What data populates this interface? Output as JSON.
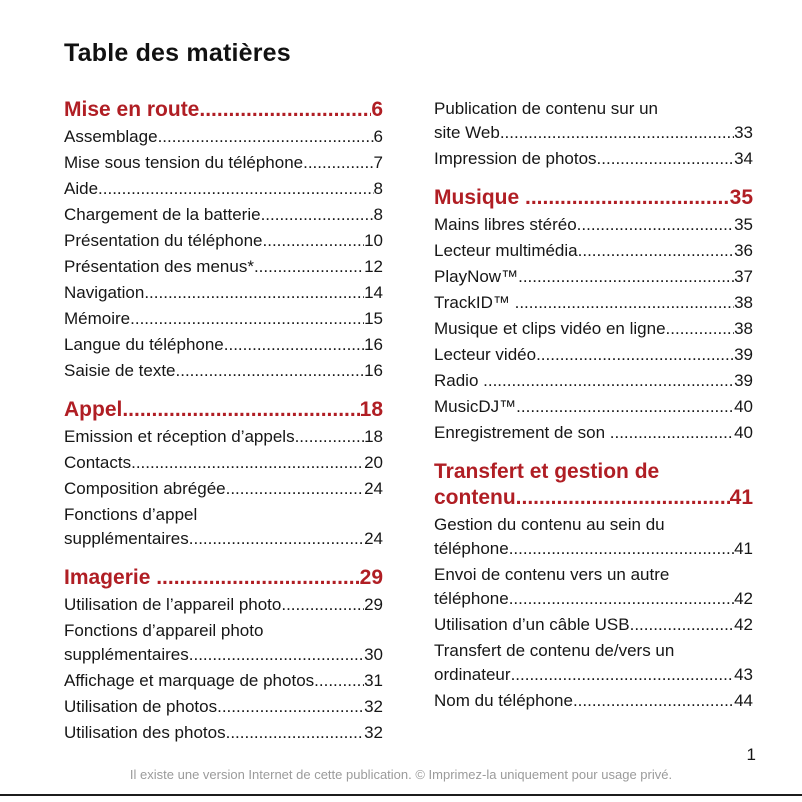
{
  "doc": {
    "title": "Table des matières",
    "page_number": "1",
    "footer": "Il existe une version Internet de cette publication. © Imprimez-la uniquement pour usage privé.",
    "accent_color": "#b01e24",
    "text_color": "#161616"
  },
  "toc": {
    "columns": [
      {
        "sections": [
          {
            "title": "Mise en route",
            "page": "6",
            "entries": [
              {
                "label": "Assemblage",
                "page": "6"
              },
              {
                "label": "Mise sous tension du téléphone",
                "page": "7"
              },
              {
                "label": "Aide",
                "page": "8"
              },
              {
                "label": "Chargement de la batterie",
                "page": "8"
              },
              {
                "label": "Présentation du téléphone",
                "page": "10"
              },
              {
                "label": "Présentation des menus*",
                "page": "12"
              },
              {
                "label": "Navigation",
                "page": "14"
              },
              {
                "label": "Mémoire",
                "page": "15"
              },
              {
                "label": "Langue du téléphone",
                "page": "16"
              },
              {
                "label": "Saisie de texte",
                "page": "16"
              }
            ]
          },
          {
            "title": "Appel",
            "page": "18",
            "entries": [
              {
                "label": "Emission et réception d’appels",
                "page": "18"
              },
              {
                "label": "Contacts",
                "page": "20"
              },
              {
                "label": "Composition abrégée",
                "page": "24"
              },
              {
                "pre": "Fonctions d’appel",
                "label": "supplémentaires",
                "page": "24"
              }
            ]
          },
          {
            "title": "Imagerie ",
            "page": "29",
            "entries": [
              {
                "label": "Utilisation de l’appareil photo",
                "page": "29"
              },
              {
                "pre": "Fonctions d’appareil photo",
                "label": "supplémentaires",
                "page": "30"
              },
              {
                "label": "Affichage et marquage de photos",
                "page": "31"
              },
              {
                "label": "Utilisation de photos",
                "page": "32"
              },
              {
                "label": "Utilisation des photos",
                "page": "32"
              }
            ]
          }
        ]
      },
      {
        "sections": [
          {
            "title": null,
            "entries": [
              {
                "pre": "Publication de contenu sur un",
                "label": "site Web",
                "page": "33"
              },
              {
                "label": "Impression de photos",
                "page": "34"
              }
            ]
          },
          {
            "title": "Musique ",
            "page": "35",
            "entries": [
              {
                "label": "Mains libres stéréo",
                "page": "35"
              },
              {
                "label": "Lecteur multimédia",
                "page": "36"
              },
              {
                "label": "PlayNow™",
                "page": "37"
              },
              {
                "label": "TrackID™ ",
                "page": "38"
              },
              {
                "label": "Musique et clips vidéo en ligne",
                "page": "38"
              },
              {
                "label": "Lecteur vidéo",
                "page": "39"
              },
              {
                "label": "Radio ",
                "page": "39"
              },
              {
                "label": "MusicDJ™",
                "page": "40"
              },
              {
                "label": "Enregistrement de son ",
                "page": "40"
              }
            ]
          },
          {
            "title_pre": "Transfert et gestion de",
            "title": "contenu",
            "page": "41",
            "entries": [
              {
                "pre": "Gestion du contenu au sein du",
                "label": "téléphone",
                "page": "41"
              },
              {
                "pre": "Envoi de contenu vers un autre",
                "label": "téléphone",
                "page": "42"
              },
              {
                "label": "Utilisation d’un câble USB",
                "page": "42"
              },
              {
                "pre": "Transfert de contenu de/vers un",
                "label": "ordinateur",
                "page": "43"
              },
              {
                "label": "Nom du téléphone",
                "page": "44"
              }
            ]
          }
        ]
      }
    ]
  }
}
